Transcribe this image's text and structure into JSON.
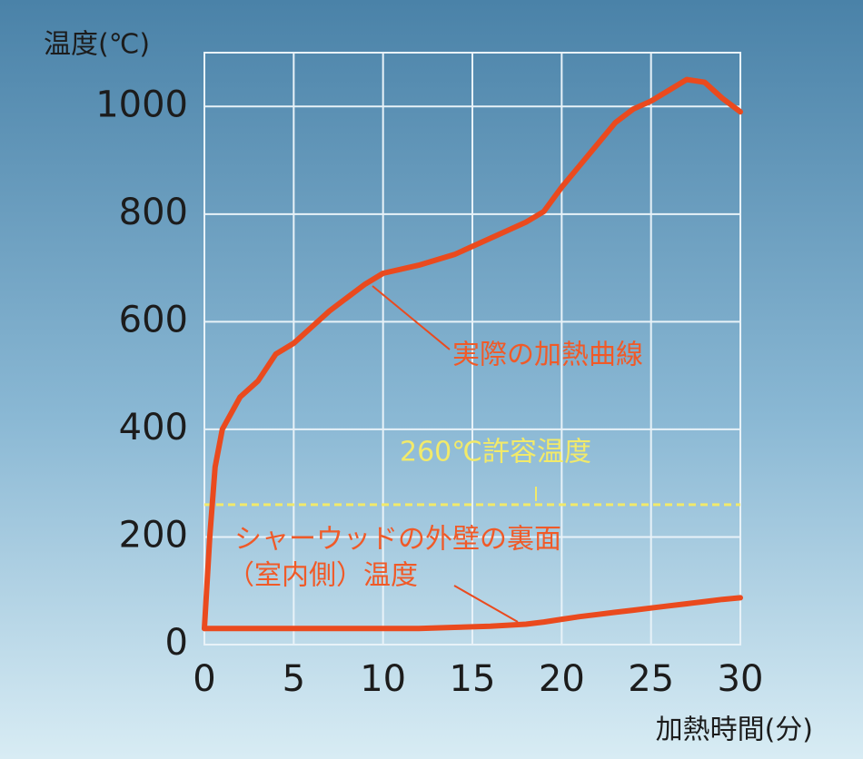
{
  "chart_data": {
    "type": "line",
    "y_label": "温度(℃)",
    "x_label": "加熱時間(分)",
    "x": [
      0,
      0.3,
      0.6,
      1,
      2,
      3,
      4,
      5,
      6,
      7,
      8,
      9,
      10,
      12,
      14,
      16,
      18,
      19,
      20,
      21,
      22,
      23,
      24,
      25,
      26,
      27,
      28,
      29,
      30
    ],
    "series": [
      {
        "color": "#ea4a1e",
        "values": [
          30,
          200,
          330,
          400,
          460,
          490,
          540,
          560,
          590,
          620,
          645,
          670,
          690,
          705,
          725,
          755,
          785,
          805,
          850,
          890,
          930,
          970,
          995,
          1010,
          1030,
          1050,
          1045,
          1015,
          990
        ]
      },
      {
        "color": "#ea4a1e",
        "values": [
          30,
          30,
          30,
          30,
          30,
          30,
          30,
          30,
          30,
          30,
          30,
          30,
          30,
          30,
          32,
          34,
          38,
          42,
          47,
          52,
          56,
          60,
          64,
          68,
          72,
          76,
          80,
          84,
          87
        ]
      }
    ],
    "hline": {
      "value": 260,
      "label": "260℃許容温度",
      "color": "#f2ea6a"
    },
    "annotations": [
      "実際の加熱曲線",
      "シャーウッドの外壁の裏面",
      "（室内側）温度"
    ],
    "xlim": [
      0,
      30
    ],
    "xticks": [
      0,
      5,
      10,
      15,
      20,
      25,
      30
    ],
    "ylim": [
      0,
      1100
    ],
    "yticks": [
      0,
      200,
      400,
      600,
      800,
      1000
    ],
    "grid": true
  }
}
